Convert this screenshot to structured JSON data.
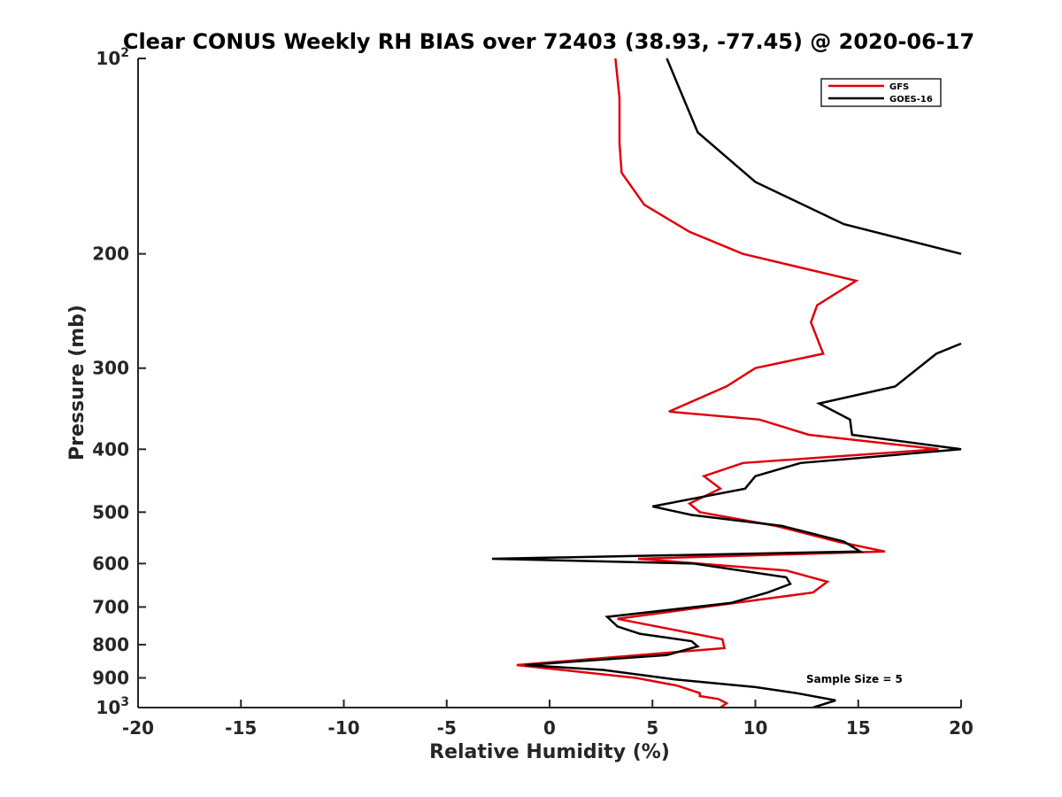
{
  "chart_data": {
    "type": "line",
    "title": "Clear CONUS Weekly RH BIAS over 72403 (38.93, -77.45) @ 2020-06-17",
    "xlabel": "Relative Humidity (%)",
    "ylabel": "Pressure (mb)",
    "xlim": [
      -20,
      20
    ],
    "ylim": [
      100,
      1000
    ],
    "yscale": "log",
    "y_reversed": true,
    "xticks": [
      "-20",
      "-15",
      "-10",
      "-5",
      "0",
      "5",
      "10",
      "15",
      "20"
    ],
    "yticks": [
      {
        "value": 100,
        "base": "10",
        "exp": "2"
      },
      {
        "value": 200,
        "label": "200"
      },
      {
        "value": 300,
        "label": "300"
      },
      {
        "value": 400,
        "label": "400"
      },
      {
        "value": 500,
        "label": "500"
      },
      {
        "value": 600,
        "label": "600"
      },
      {
        "value": 700,
        "label": "700"
      },
      {
        "value": 800,
        "label": "800"
      },
      {
        "value": 900,
        "label": "900"
      },
      {
        "value": 1000,
        "base": "10",
        "exp": "3"
      }
    ],
    "legend_position": "top-right",
    "grid": false,
    "annotation": "Sample Size = 5",
    "series": [
      {
        "name": "GFS",
        "color": "#e0000b",
        "points": [
          [
            3.2,
            100
          ],
          [
            3.4,
            115
          ],
          [
            3.4,
            135
          ],
          [
            3.5,
            150
          ],
          [
            4.6,
            168
          ],
          [
            6.8,
            185
          ],
          [
            9.4,
            200
          ],
          [
            14.9,
            220
          ],
          [
            13.0,
            240
          ],
          [
            12.7,
            255
          ],
          [
            13.3,
            285
          ],
          [
            10.0,
            300
          ],
          [
            8.6,
            320
          ],
          [
            5.8,
            350
          ],
          [
            10.2,
            360
          ],
          [
            12.6,
            380
          ],
          [
            18.9,
            400
          ],
          [
            9.4,
            420
          ],
          [
            7.5,
            440
          ],
          [
            8.3,
            460
          ],
          [
            6.8,
            485
          ],
          [
            7.3,
            500
          ],
          [
            11.0,
            525
          ],
          [
            14.0,
            555
          ],
          [
            16.3,
            575
          ],
          [
            4.3,
            590
          ],
          [
            11.5,
            615
          ],
          [
            13.5,
            640
          ],
          [
            12.8,
            665
          ],
          [
            9.0,
            690
          ],
          [
            3.3,
            730
          ],
          [
            8.4,
            785
          ],
          [
            8.5,
            810
          ],
          [
            -1.6,
            860
          ],
          [
            4.2,
            900
          ],
          [
            6.2,
            925
          ],
          [
            7.3,
            950
          ],
          [
            7.3,
            960
          ],
          [
            8.2,
            970
          ],
          [
            8.6,
            985
          ],
          [
            8.3,
            1000
          ]
        ]
      },
      {
        "name": "GOES-16",
        "color": "#000000",
        "points": [
          [
            5.7,
            100
          ],
          [
            7.2,
            130
          ],
          [
            10.0,
            155
          ],
          [
            14.3,
            180
          ],
          [
            20.0,
            200
          ],
          [
            null,
            null
          ],
          [
            20.0,
            275
          ],
          [
            18.8,
            285
          ],
          [
            16.8,
            320
          ],
          [
            13.1,
            340
          ],
          [
            14.6,
            360
          ],
          [
            14.7,
            380
          ],
          [
            20.0,
            400
          ],
          [
            12.2,
            420
          ],
          [
            10.0,
            440
          ],
          [
            9.5,
            460
          ],
          [
            5.0,
            490
          ],
          [
            6.9,
            505
          ],
          [
            11.3,
            525
          ],
          [
            14.3,
            555
          ],
          [
            15.1,
            575
          ],
          [
            -2.8,
            590
          ],
          [
            7.0,
            600
          ],
          [
            11.5,
            630
          ],
          [
            11.7,
            645
          ],
          [
            10.6,
            665
          ],
          [
            8.8,
            690
          ],
          [
            2.8,
            725
          ],
          [
            3.3,
            750
          ],
          [
            4.4,
            770
          ],
          [
            6.9,
            790
          ],
          [
            7.2,
            805
          ],
          [
            5.7,
            830
          ],
          [
            -1.2,
            860
          ],
          [
            2.6,
            875
          ],
          [
            6.1,
            905
          ],
          [
            10.0,
            930
          ],
          [
            12.0,
            950
          ],
          [
            13.9,
            975
          ],
          [
            12.8,
            1000
          ]
        ]
      }
    ]
  }
}
